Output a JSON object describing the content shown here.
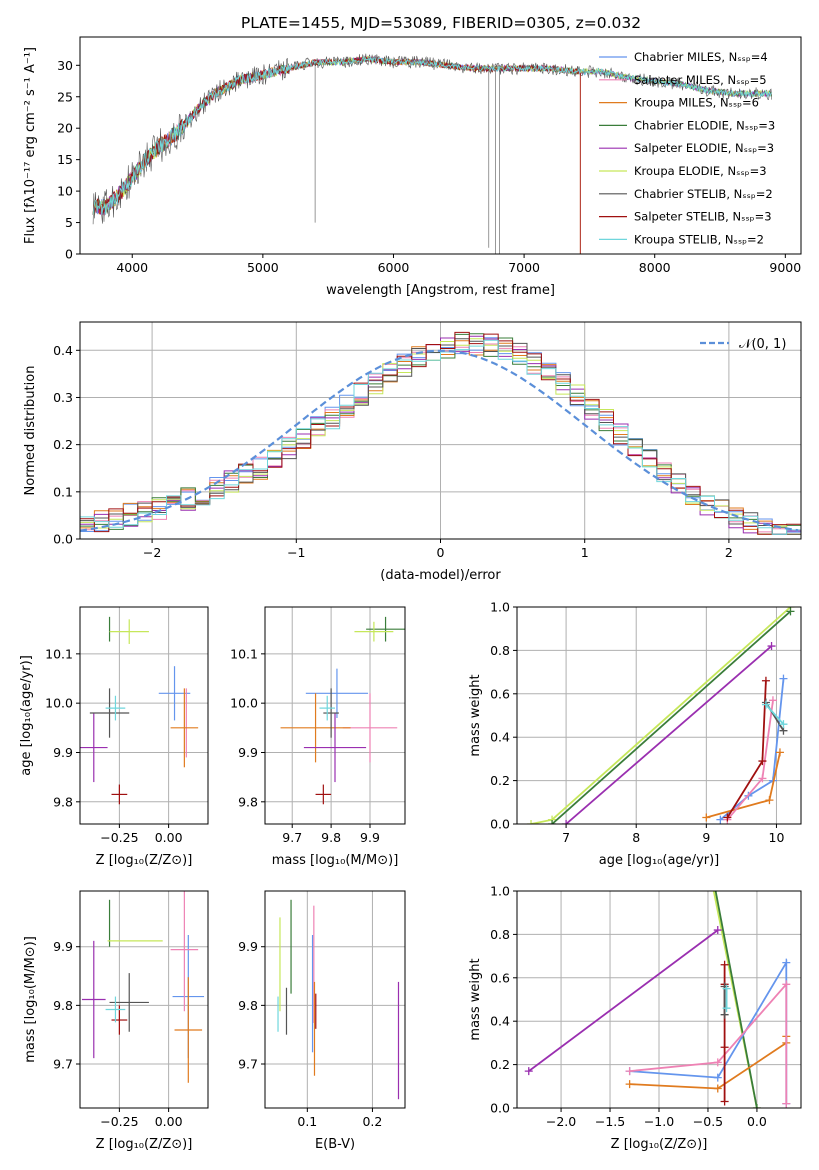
{
  "figure_title": "PLATE=1455, MJD=53089, FIBERID=0305, z=0.032",
  "colors": {
    "Chabrier MILES": "#6495ed",
    "Salpeter MILES": "#ee82b4",
    "Kroupa MILES": "#e07b1f",
    "Chabrier ELODIE": "#3a7d3a",
    "Salpeter ELODIE": "#9a2fb0",
    "Kroupa ELODIE": "#c6e75a",
    "Chabrier STELIB": "#555555",
    "Salpeter STELIB": "#a01010",
    "Kroupa STELIB": "#6fd6dc",
    "normal_curve": "#5b8fd9"
  },
  "chart_data": [
    {
      "id": "spectrum",
      "type": "line",
      "xlabel": "wavelength [Angstrom, rest frame]",
      "ylabel": "Flux [fλ10⁻¹⁷ erg cm⁻² s⁻¹ A⁻¹]",
      "xlim": [
        3600,
        9120
      ],
      "ylim": [
        0,
        34.5
      ],
      "xticks": [
        "4000",
        "5000",
        "6000",
        "7000",
        "8000",
        "9000"
      ],
      "yticks": [
        "0",
        "5",
        "10",
        "15",
        "20",
        "25",
        "30"
      ],
      "grid": false,
      "legend_loc": "upper right",
      "legend": [
        "Chabrier MILES, Nₛₛₚ=4",
        "Salpeter MILES, Nₛₛₚ=5",
        "Kroupa MILES, Nₛₛₚ=6",
        "Chabrier ELODIE, Nₛₛₚ=3",
        "Salpeter ELODIE, Nₛₛₚ=3",
        "Kroupa ELODIE, Nₛₛₚ=3",
        "Chabrier STELIB, Nₛₛₚ=2",
        "Salpeter STELIB, Nₛₛₚ=3",
        "Kroupa STELIB, Nₛₛₚ=2"
      ],
      "continuum": {
        "x": [
          3700,
          3800,
          3900,
          4000,
          4100,
          4200,
          4300,
          4400,
          4500,
          4600,
          4800,
          5000,
          5200,
          5400,
          5600,
          5800,
          6000,
          6200,
          6400,
          6600,
          6800,
          7000,
          7200,
          7400,
          7600,
          7800,
          8000,
          8200,
          8400,
          8600,
          8800
        ],
        "y": [
          7.5,
          7.5,
          9.5,
          12,
          15,
          17,
          18.5,
          20.5,
          23,
          25,
          27.5,
          28.5,
          29.5,
          30.5,
          30.5,
          31,
          30.5,
          30.5,
          30,
          29.5,
          29.5,
          29.5,
          29.5,
          29,
          29,
          28,
          27.5,
          27,
          26,
          25.5,
          25.5
        ]
      },
      "features": [
        {
          "series": "Salpeter STELIB",
          "x": 7430,
          "drops_to": 0
        },
        {
          "series": "Kroupa MILES",
          "x": 7430,
          "drops_to": 0
        },
        {
          "series": "Chabrier STELIB",
          "x": 6730,
          "drops_to": 1
        },
        {
          "series": "Chabrier STELIB",
          "x": 6780,
          "drops_to": 0
        },
        {
          "series": "Chabrier STELIB",
          "x": 6810,
          "drops_to": 0
        },
        {
          "series": "Chabrier STELIB",
          "x": 5400,
          "drops_to": 5
        }
      ]
    },
    {
      "id": "residuals",
      "type": "line",
      "xlabel": "(data-model)/error",
      "ylabel": "Normed distribution",
      "xlim": [
        -2.5,
        2.5
      ],
      "ylim": [
        0,
        0.46
      ],
      "xticks": [
        "−2",
        "−1",
        "0",
        "1",
        "2"
      ],
      "yticks": [
        "0.0",
        "0.1",
        "0.2",
        "0.3",
        "0.4"
      ],
      "grid": true,
      "legend_loc": "upper right",
      "legend": [
        "𝒩(0, 1)"
      ],
      "normal": {
        "mu": 0,
        "sigma": 1
      },
      "bin_width": 0.1
    },
    {
      "id": "age_vs_Z",
      "type": "scatter",
      "xlabel": "Z [log₁₀(Z/Z⊙)]",
      "ylabel": "age  [log₁₀(age/yr)]",
      "xlim": [
        -0.45,
        0.2
      ],
      "ylim": [
        9.755,
        10.195
      ],
      "xticks": [
        "−0.25",
        "0.00"
      ],
      "xtick_values": [
        -0.25,
        0.0
      ],
      "yticks": [
        "9.8",
        "9.9",
        "10.0",
        "10.1"
      ],
      "ytick_values": [
        9.8,
        9.9,
        10.0,
        10.1
      ],
      "grid": true,
      "points": [
        {
          "series": "Chabrier MILES",
          "x": 0.03,
          "xerr": 0.08,
          "y": 10.02,
          "yerr": 0.055
        },
        {
          "series": "Salpeter MILES",
          "x": 0.09,
          "xerr": 0.0,
          "y": 9.96,
          "yerr": 0.07
        },
        {
          "series": "Kroupa MILES",
          "x": 0.08,
          "xerr": 0.07,
          "y": 9.95,
          "yerr": 0.08
        },
        {
          "series": "Chabrier ELODIE",
          "x": -0.3,
          "xerr": 0.0,
          "y": 10.15,
          "yerr": 0.025
        },
        {
          "series": "Salpeter ELODIE",
          "x": -0.38,
          "xerr": 0.07,
          "y": 9.91,
          "yerr": 0.07
        },
        {
          "series": "Kroupa ELODIE",
          "x": -0.2,
          "xerr": 0.1,
          "y": 10.145,
          "yerr": 0.025
        },
        {
          "series": "Chabrier STELIB",
          "x": -0.3,
          "xerr": 0.1,
          "y": 9.98,
          "yerr": 0.05
        },
        {
          "series": "Salpeter STELIB",
          "x": -0.25,
          "xerr": 0.04,
          "y": 9.815,
          "yerr": 0.02
        },
        {
          "series": "Kroupa STELIB",
          "x": -0.27,
          "xerr": 0.05,
          "y": 9.99,
          "yerr": 0.025
        }
      ]
    },
    {
      "id": "age_vs_mass",
      "type": "scatter",
      "xlabel": "mass [log₁₀(M/M⊙)]",
      "ylabel": "",
      "xlim": [
        9.63,
        9.99
      ],
      "ylim": [
        9.755,
        10.195
      ],
      "xticks": [
        "9.7",
        "9.8",
        "9.9"
      ],
      "xtick_values": [
        9.7,
        9.8,
        9.9
      ],
      "yticks": [
        "9.8",
        "9.9",
        "10.0",
        "10.1"
      ],
      "ytick_values": [
        9.8,
        9.9,
        10.0,
        10.1
      ],
      "grid": true,
      "points": [
        {
          "series": "Chabrier MILES",
          "x": 9.815,
          "xerr": 0.08,
          "y": 10.02,
          "yerr": 0.05
        },
        {
          "series": "Salpeter MILES",
          "x": 9.9,
          "xerr": 0.07,
          "y": 9.95,
          "yerr": 0.07
        },
        {
          "series": "Kroupa MILES",
          "x": 9.76,
          "xerr": 0.09,
          "y": 9.95,
          "yerr": 0.07
        },
        {
          "series": "Chabrier ELODIE",
          "x": 9.94,
          "xerr": 0.05,
          "y": 10.15,
          "yerr": 0.025
        },
        {
          "series": "Salpeter ELODIE",
          "x": 9.81,
          "xerr": 0.08,
          "y": 9.91,
          "yerr": 0.07
        },
        {
          "series": "Kroupa ELODIE",
          "x": 9.91,
          "xerr": 0.05,
          "y": 10.145,
          "yerr": 0.02
        },
        {
          "series": "Chabrier STELIB",
          "x": 9.8,
          "xerr": 0.02,
          "y": 9.98,
          "yerr": 0.05
        },
        {
          "series": "Salpeter STELIB",
          "x": 9.78,
          "xerr": 0.02,
          "y": 9.815,
          "yerr": 0.02
        },
        {
          "series": "Kroupa STELIB",
          "x": 9.79,
          "xerr": 0.02,
          "y": 9.99,
          "yerr": 0.025
        }
      ]
    },
    {
      "id": "weight_vs_age",
      "type": "line",
      "xlabel": "age  [log₁₀(age/yr)]",
      "ylabel": "mass weight",
      "xlim": [
        6.3,
        10.35
      ],
      "ylim": [
        0,
        1
      ],
      "xticks": [
        "7",
        "8",
        "9",
        "10"
      ],
      "xtick_values": [
        7,
        8,
        9,
        10
      ],
      "yticks": [
        "0.0",
        "0.2",
        "0.4",
        "0.6",
        "0.8",
        "1.0"
      ],
      "ytick_values": [
        0,
        0.2,
        0.4,
        0.6,
        0.8,
        1.0
      ],
      "grid": true,
      "series": [
        {
          "name": "Kroupa ELODIE",
          "x": [
            6.5,
            6.8,
            10.2
          ],
          "y": [
            0.0,
            0.02,
            1.0
          ]
        },
        {
          "name": "Chabrier ELODIE",
          "x": [
            6.8,
            10.2
          ],
          "y": [
            0.0,
            0.98
          ]
        },
        {
          "name": "Salpeter ELODIE",
          "x": [
            7.0,
            9.93
          ],
          "y": [
            0.0,
            0.82
          ]
        },
        {
          "name": "Chabrier MILES",
          "x": [
            9.2,
            9.6,
            9.95,
            10.1
          ],
          "y": [
            0.02,
            0.13,
            0.2,
            0.67
          ]
        },
        {
          "name": "Kroupa MILES",
          "x": [
            9.0,
            9.9,
            10.05
          ],
          "y": [
            0.03,
            0.11,
            0.33
          ]
        },
        {
          "name": "Salpeter MILES",
          "x": [
            9.3,
            9.8,
            9.95
          ],
          "y": [
            0.02,
            0.21,
            0.57
          ]
        },
        {
          "name": "Salpeter STELIB",
          "x": [
            9.3,
            9.8,
            9.85
          ],
          "y": [
            0.03,
            0.29,
            0.66
          ]
        },
        {
          "name": "Chabrier STELIB",
          "x": [
            9.85,
            10.1
          ],
          "y": [
            0.56,
            0.43
          ]
        },
        {
          "name": "Kroupa STELIB",
          "x": [
            9.85,
            10.1
          ],
          "y": [
            0.55,
            0.46
          ]
        }
      ]
    },
    {
      "id": "mass_vs_Z",
      "type": "scatter",
      "xlabel": "Z [log₁₀(Z/Z⊙)]",
      "ylabel": "mass [log₁₀(M/M⊙)]",
      "xlim": [
        -0.45,
        0.2
      ],
      "ylim": [
        9.625,
        9.995
      ],
      "xticks": [
        "−0.25",
        "0.00"
      ],
      "xtick_values": [
        -0.25,
        0.0
      ],
      "yticks": [
        "9.7",
        "9.8",
        "9.9"
      ],
      "ytick_values": [
        9.7,
        9.8,
        9.9
      ],
      "grid": true,
      "points": [
        {
          "series": "Chabrier MILES",
          "x": 0.1,
          "xerr": 0.08,
          "y": 9.815,
          "yerr": 0.105
        },
        {
          "series": "Salpeter MILES",
          "x": 0.08,
          "xerr": 0.07,
          "y": 9.895,
          "yerr": 0.105
        },
        {
          "series": "Kroupa MILES",
          "x": 0.1,
          "xerr": 0.07,
          "y": 9.758,
          "yerr": 0.09
        },
        {
          "series": "Chabrier ELODIE",
          "x": -0.3,
          "xerr": 0.0,
          "y": 9.94,
          "yerr": 0.04
        },
        {
          "series": "Salpeter ELODIE",
          "x": -0.38,
          "xerr": 0.06,
          "y": 9.81,
          "yerr": 0.1
        },
        {
          "series": "Kroupa ELODIE",
          "x": -0.17,
          "xerr": 0.14,
          "y": 9.91,
          "yerr": 0.0
        },
        {
          "series": "Chabrier STELIB",
          "x": -0.2,
          "xerr": 0.1,
          "y": 9.805,
          "yerr": 0.05
        },
        {
          "series": "Salpeter STELIB",
          "x": -0.25,
          "xerr": 0.04,
          "y": 9.775,
          "yerr": 0.025
        },
        {
          "series": "Kroupa STELIB",
          "x": -0.27,
          "xerr": 0.05,
          "y": 9.793,
          "yerr": 0.022
        }
      ]
    },
    {
      "id": "mass_vs_ebv",
      "type": "scatter",
      "xlabel": "E(B-V)",
      "ylabel": "",
      "xlim": [
        0.035,
        0.25
      ],
      "ylim": [
        9.625,
        9.995
      ],
      "xticks": [
        "0.1",
        "0.2"
      ],
      "xtick_values": [
        0.1,
        0.2
      ],
      "yticks": [
        "9.7",
        "9.8",
        "9.9"
      ],
      "ytick_values": [
        9.7,
        9.8,
        9.9
      ],
      "grid": true,
      "points": [
        {
          "series": "Chabrier MILES",
          "x": 0.108,
          "y": 9.82,
          "yerr": 0.1
        },
        {
          "series": "Salpeter MILES",
          "x": 0.11,
          "y": 9.87,
          "yerr": 0.1
        },
        {
          "series": "Kroupa MILES",
          "x": 0.111,
          "y": 9.76,
          "yerr": 0.08
        },
        {
          "series": "Chabrier ELODIE",
          "x": 0.075,
          "y": 9.9,
          "yerr": 0.08
        },
        {
          "series": "Salpeter ELODIE",
          "x": 0.24,
          "y": 9.74,
          "yerr": 0.1
        },
        {
          "series": "Kroupa ELODIE",
          "x": 0.058,
          "y": 9.87,
          "yerr": 0.08
        },
        {
          "series": "Chabrier STELIB",
          "x": 0.068,
          "y": 9.79,
          "yerr": 0.04
        },
        {
          "series": "Salpeter STELIB",
          "x": 0.113,
          "y": 9.79,
          "yerr": 0.03
        },
        {
          "series": "Kroupa STELIB",
          "x": 0.055,
          "y": 9.785,
          "yerr": 0.03
        }
      ]
    },
    {
      "id": "weight_vs_Z",
      "type": "line",
      "xlabel": "Z [log₁₀(Z/Z⊙)]",
      "ylabel": "mass weight",
      "xlim": [
        -2.45,
        0.45
      ],
      "ylim": [
        0,
        1
      ],
      "xticks": [
        "−2.0",
        "−1.5",
        "−1.0",
        "−0.5",
        "0.0"
      ],
      "xtick_values": [
        -2.0,
        -1.5,
        -1.0,
        -0.5,
        0.0
      ],
      "yticks": [
        "0.0",
        "0.2",
        "0.4",
        "0.6",
        "0.8",
        "1.0"
      ],
      "ytick_values": [
        0,
        0.2,
        0.4,
        0.6,
        0.8,
        1.0
      ],
      "grid": true,
      "series": [
        {
          "name": "Kroupa ELODIE",
          "x": [
            -0.45,
            0.0
          ],
          "y": [
            1.02,
            0.0
          ]
        },
        {
          "name": "Chabrier ELODIE",
          "x": [
            -0.43,
            0.0
          ],
          "y": [
            1.02,
            0.0
          ]
        },
        {
          "name": "Salpeter ELODIE",
          "x": [
            -2.33,
            -0.4
          ],
          "y": [
            0.17,
            0.82
          ]
        },
        {
          "name": "Chabrier MILES",
          "x": [
            -1.3,
            -0.4,
            0.3,
            0.3
          ],
          "y": [
            0.17,
            0.14,
            0.67,
            0.02
          ]
        },
        {
          "name": "Kroupa MILES",
          "x": [
            -1.3,
            -0.4,
            0.3,
            0.3
          ],
          "y": [
            0.11,
            0.09,
            0.3,
            0.33
          ]
        },
        {
          "name": "Salpeter MILES",
          "x": [
            -1.3,
            -0.4,
            0.3,
            0.3
          ],
          "y": [
            0.17,
            0.21,
            0.57,
            0.02
          ]
        },
        {
          "name": "Salpeter STELIB",
          "x": [
            -0.33,
            -0.33,
            -0.33,
            -0.33
          ],
          "y": [
            0.03,
            0.28,
            0.57,
            0.66
          ]
        },
        {
          "name": "Chabrier STELIB",
          "x": [
            -0.33,
            -0.33
          ],
          "y": [
            0.43,
            0.56
          ]
        },
        {
          "name": "Kroupa STELIB",
          "x": [
            -0.31,
            -0.31
          ],
          "y": [
            0.46,
            0.55
          ]
        }
      ]
    }
  ]
}
